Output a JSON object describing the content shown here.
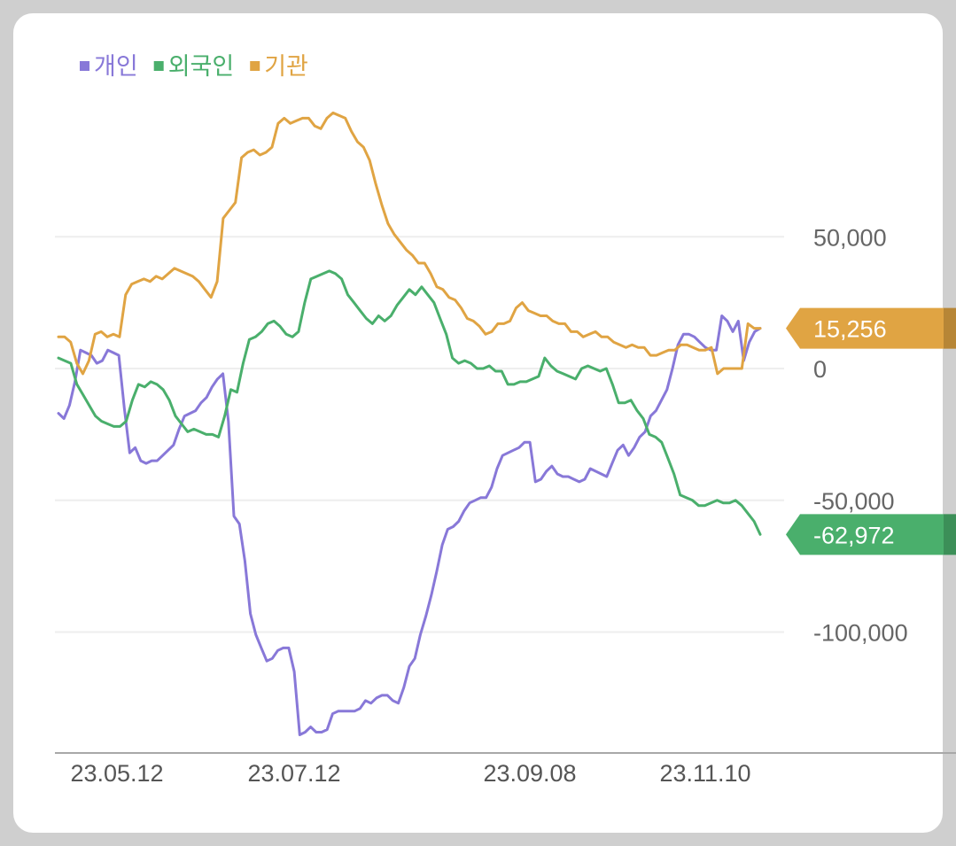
{
  "chart_data": {
    "type": "line",
    "x_ticks": [
      "23.05.12",
      "23.07.12",
      "23.09.08",
      "23.11.10"
    ],
    "y_ticks": [
      {
        "value": 50000,
        "label": "50,000"
      },
      {
        "value": 0,
        "label": "0"
      },
      {
        "value": -50000,
        "label": "-50,000"
      },
      {
        "value": -100000,
        "label": "-100,000"
      }
    ],
    "ylim": [
      -146000,
      99000
    ],
    "grid": true,
    "legend": "top-left",
    "series": [
      {
        "name": "개인",
        "color": "#8878d8",
        "last_label": "",
        "values": [
          -17000,
          -19000,
          -14000,
          -5000,
          7000,
          6000,
          5000,
          2000,
          3000,
          7000,
          6000,
          5000,
          -15000,
          -32000,
          -30000,
          -35000,
          -36000,
          -35000,
          -35000,
          -33000,
          -31000,
          -29000,
          -23000,
          -18000,
          -17000,
          -16000,
          -13000,
          -11000,
          -7000,
          -4000,
          -2000,
          -20000,
          -56000,
          -59000,
          -73000,
          -93000,
          -101000,
          -106000,
          -111000,
          -110000,
          -107000,
          -106000,
          -106000,
          -115000,
          -139000,
          -138000,
          -136000,
          -138000,
          -138000,
          -137000,
          -131000,
          -130000,
          -130000,
          -130000,
          -130000,
          -129000,
          -126000,
          -127000,
          -125000,
          -124000,
          -124000,
          -126000,
          -127000,
          -121000,
          -113000,
          -110000,
          -101000,
          -94000,
          -86000,
          -77000,
          -67000,
          -61000,
          -60000,
          -58000,
          -54000,
          -51000,
          -50000,
          -49000,
          -49000,
          -45000,
          -38000,
          -33000,
          -32000,
          -31000,
          -30000,
          -28000,
          -28000,
          -43000,
          -42000,
          -39000,
          -37000,
          -40000,
          -41000,
          -41000,
          -42000,
          -43000,
          -42000,
          -38000,
          -39000,
          -40000,
          -41000,
          -36000,
          -31000,
          -29000,
          -33000,
          -30000,
          -26000,
          -24000,
          -18000,
          -16000,
          -12000,
          -8000,
          0,
          9000,
          13000,
          13000,
          12000,
          10000,
          8000,
          7000,
          7000,
          20000,
          18000,
          14000,
          18000,
          3000,
          10000,
          14000,
          15256
        ]
      },
      {
        "name": "외국인",
        "color": "#4aaf6c",
        "last_label": "-62,972",
        "values": [
          4000,
          3000,
          2000,
          -6000,
          -10000,
          -14000,
          -18000,
          -20000,
          -21000,
          -22000,
          -22000,
          -20000,
          -12000,
          -6000,
          -7000,
          -5000,
          -6000,
          -8000,
          -12000,
          -18000,
          -21000,
          -24000,
          -23000,
          -24000,
          -25000,
          -25000,
          -26000,
          -18000,
          -8000,
          -9000,
          2000,
          11000,
          12000,
          14000,
          17000,
          18000,
          16000,
          13000,
          12000,
          14000,
          25000,
          34000,
          35000,
          36000,
          37000,
          36000,
          34000,
          28000,
          25000,
          22000,
          19000,
          17000,
          20000,
          18000,
          20000,
          24000,
          27000,
          30000,
          28000,
          31000,
          28000,
          25000,
          19000,
          13000,
          4000,
          2000,
          3000,
          2000,
          0,
          0,
          1000,
          -1000,
          -1000,
          -6000,
          -6000,
          -5000,
          -5000,
          -4000,
          -3000,
          4000,
          1000,
          -1000,
          -2000,
          -3000,
          -4000,
          0,
          1000,
          0,
          -1000,
          0,
          -6000,
          -13000,
          -13000,
          -12000,
          -16000,
          -19000,
          -25000,
          -26000,
          -28000,
          -34000,
          -40000,
          -48000,
          -49000,
          -50000,
          -52000,
          -52000,
          -51000,
          -50000,
          -51000,
          -51000,
          -50000,
          -52000,
          -55000,
          -58000,
          -62972
        ]
      },
      {
        "name": "기관",
        "color": "#e0a443",
        "last_label": "15,256",
        "values": [
          12000,
          12000,
          10000,
          2000,
          -2000,
          3000,
          13000,
          14000,
          12000,
          13000,
          12000,
          28000,
          32000,
          33000,
          34000,
          33000,
          35000,
          34000,
          36000,
          38000,
          37000,
          36000,
          35000,
          33000,
          30000,
          27000,
          33000,
          57000,
          60000,
          63000,
          80000,
          82000,
          83000,
          81000,
          82000,
          84000,
          93000,
          95000,
          93000,
          94000,
          95000,
          95000,
          92000,
          91000,
          95000,
          97000,
          96000,
          95000,
          90000,
          86000,
          84000,
          79000,
          70000,
          62000,
          55000,
          51000,
          48000,
          45000,
          43000,
          40000,
          40000,
          36000,
          31000,
          30000,
          27000,
          26000,
          23000,
          19000,
          18000,
          16000,
          13000,
          14000,
          17000,
          17000,
          18000,
          23000,
          25000,
          22000,
          21000,
          20000,
          20000,
          18000,
          17000,
          17000,
          14000,
          14000,
          12000,
          13000,
          14000,
          12000,
          12000,
          10000,
          9000,
          8000,
          9000,
          8000,
          8000,
          5000,
          5000,
          6000,
          7000,
          7000,
          9000,
          9000,
          8000,
          7000,
          7000,
          8000,
          -2000,
          0,
          0,
          0,
          0,
          17000,
          15256,
          15256
        ]
      }
    ]
  }
}
